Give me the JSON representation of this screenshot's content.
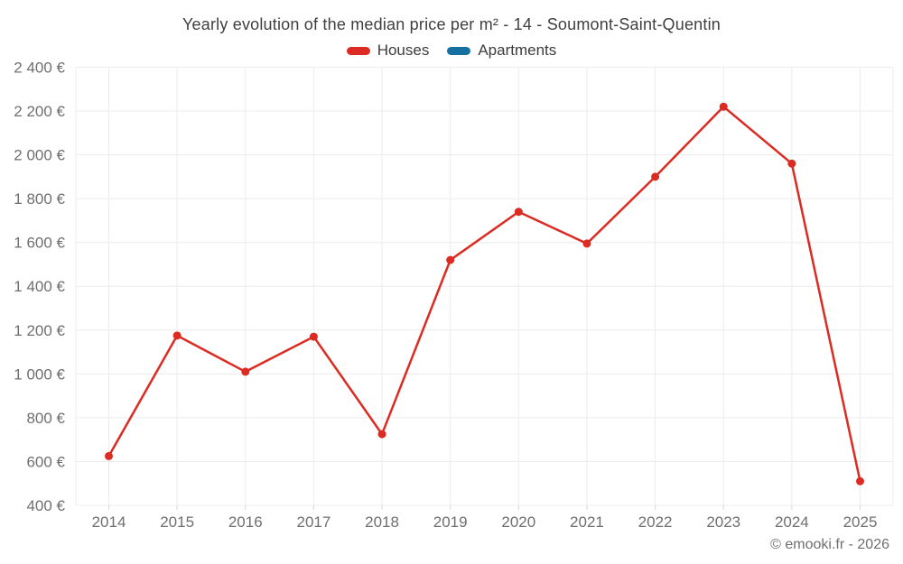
{
  "page": {
    "title": "Yearly evolution of the median price per m² - 14 - Soumont-Saint-Quentin",
    "footer": "© emooki.fr - 2026"
  },
  "legend": {
    "items": [
      {
        "label": "Houses",
        "color": "#dc2b22"
      },
      {
        "label": "Apartments",
        "color": "#1470a1"
      }
    ]
  },
  "chart_data": {
    "type": "line",
    "title": "Yearly evolution of the median price per m² - 14 - Soumont-Saint-Quentin",
    "categories": [
      "2014",
      "2015",
      "2016",
      "2017",
      "2018",
      "2019",
      "2020",
      "2021",
      "2022",
      "2023",
      "2024",
      "2025"
    ],
    "series": [
      {
        "name": "Houses",
        "color": "#dc2b22",
        "values": [
          625,
          1175,
          1010,
          1170,
          725,
          1520,
          1740,
          1595,
          1900,
          2220,
          1960,
          510
        ]
      },
      {
        "name": "Apartments",
        "color": "#1470a1",
        "values": []
      }
    ],
    "xlabel": "",
    "ylabel": "",
    "ylim": [
      400,
      2400
    ],
    "y_ticks": [
      {
        "value": 400,
        "label": "400 €"
      },
      {
        "value": 600,
        "label": "600 €"
      },
      {
        "value": 800,
        "label": "800 €"
      },
      {
        "value": 1000,
        "label": "1 000 €"
      },
      {
        "value": 1200,
        "label": "1 200 €"
      },
      {
        "value": 1400,
        "label": "1 400 €"
      },
      {
        "value": 1600,
        "label": "1 600 €"
      },
      {
        "value": 1800,
        "label": "1 800 €"
      },
      {
        "value": 2000,
        "label": "2 000 €"
      },
      {
        "value": 2200,
        "label": "2 200 €"
      },
      {
        "value": 2400,
        "label": "2 400 €"
      }
    ],
    "grid": true,
    "legend_position": "top",
    "currency": "€"
  },
  "colors": {
    "grid": "#ececec",
    "axis_text": "#6f6f6f",
    "title_text": "#3f3f3f",
    "footer_text": "#6f6f6f"
  }
}
